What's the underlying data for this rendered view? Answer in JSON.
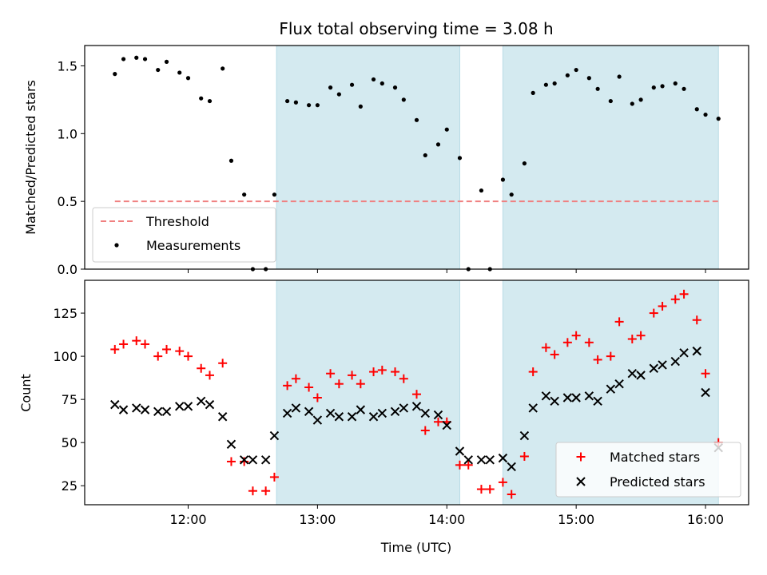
{
  "chart_data": [
    {
      "type": "scatter",
      "title": "Flux total observing time = 3.08 h",
      "xlabel": "",
      "ylabel": "Matched/Predicted stars",
      "xlim": [
        "11:12",
        "16:20"
      ],
      "ylim": [
        0,
        1.65
      ],
      "yticks": [
        "0.0",
        "0.5",
        "1.0",
        "1.5"
      ],
      "shaded_intervals": [
        [
          "12:41",
          "14:06"
        ],
        [
          "14:26",
          "16:06"
        ]
      ],
      "threshold": {
        "name": "Threshold",
        "value": 0.5,
        "x_start": "11:26",
        "x_end": "16:06",
        "color": "#f08080"
      },
      "series": [
        {
          "name": "Measurements",
          "color": "#000000",
          "marker": "dot",
          "x": [
            "11:26",
            "11:30",
            "11:36",
            "11:40",
            "11:46",
            "11:50",
            "11:56",
            "12:00",
            "12:06",
            "12:10",
            "12:16",
            "12:20",
            "12:26",
            "12:30",
            "12:36",
            "12:40",
            "12:46",
            "12:50",
            "12:56",
            "13:00",
            "13:06",
            "13:10",
            "13:16",
            "13:20",
            "13:26",
            "13:30",
            "13:36",
            "13:40",
            "13:46",
            "13:50",
            "13:56",
            "14:00",
            "14:06",
            "14:10",
            "14:16",
            "14:20",
            "14:26",
            "14:30",
            "14:36",
            "14:40",
            "14:46",
            "14:50",
            "14:56",
            "15:00",
            "15:06",
            "15:10",
            "15:16",
            "15:20",
            "15:26",
            "15:30",
            "15:36",
            "15:40",
            "15:46",
            "15:50",
            "15:56",
            "16:00",
            "16:06"
          ],
          "y": [
            1.44,
            1.55,
            1.56,
            1.55,
            1.47,
            1.53,
            1.45,
            1.41,
            1.26,
            1.24,
            1.48,
            0.8,
            0.55,
            0.0,
            0.0,
            0.55,
            1.24,
            1.23,
            1.21,
            1.21,
            1.34,
            1.29,
            1.36,
            1.2,
            1.4,
            1.37,
            1.34,
            1.25,
            1.1,
            0.84,
            0.92,
            1.03,
            0.82,
            0.0,
            0.58,
            0.0,
            0.66,
            0.55,
            0.78,
            1.3,
            1.36,
            1.37,
            1.43,
            1.47,
            1.41,
            1.33,
            1.24,
            1.42,
            1.22,
            1.25,
            1.34,
            1.35,
            1.37,
            1.33,
            1.18,
            1.14,
            1.11
          ]
        }
      ]
    },
    {
      "type": "scatter",
      "title": "",
      "xlabel": "Time (UTC)",
      "ylabel": "Count",
      "xlim": [
        "11:12",
        "16:20"
      ],
      "ylim": [
        14,
        144
      ],
      "yticks": [
        "25",
        "50",
        "75",
        "100",
        "125"
      ],
      "xticks": [
        "12:00",
        "13:00",
        "14:00",
        "15:00",
        "16:00"
      ],
      "shaded_intervals": [
        [
          "12:41",
          "14:06"
        ],
        [
          "14:26",
          "16:06"
        ]
      ],
      "series": [
        {
          "name": "Matched stars",
          "color": "#ff0000",
          "marker": "plus",
          "x": [
            "11:26",
            "11:30",
            "11:36",
            "11:40",
            "11:46",
            "11:50",
            "11:56",
            "12:00",
            "12:06",
            "12:10",
            "12:16",
            "12:20",
            "12:26",
            "12:30",
            "12:36",
            "12:40",
            "12:46",
            "12:50",
            "12:56",
            "13:00",
            "13:06",
            "13:10",
            "13:16",
            "13:20",
            "13:26",
            "13:30",
            "13:36",
            "13:40",
            "13:46",
            "13:50",
            "13:56",
            "14:00",
            "14:06",
            "14:10",
            "14:16",
            "14:20",
            "14:26",
            "14:30",
            "14:36",
            "14:40",
            "14:46",
            "14:50",
            "14:56",
            "15:00",
            "15:06",
            "15:10",
            "15:16",
            "15:20",
            "15:26",
            "15:30",
            "15:36",
            "15:40",
            "15:46",
            "15:50",
            "15:56",
            "16:00",
            "16:06"
          ],
          "y": [
            104,
            107,
            109,
            107,
            100,
            104,
            103,
            100,
            93,
            89,
            96,
            39,
            39,
            22,
            22,
            30,
            83,
            87,
            82,
            76,
            90,
            84,
            89,
            84,
            91,
            92,
            91,
            87,
            78,
            57,
            62,
            62,
            37,
            37,
            23,
            23,
            27,
            20,
            42,
            91,
            105,
            101,
            108,
            112,
            108,
            98,
            100,
            120,
            110,
            112,
            125,
            129,
            133,
            136,
            121,
            90,
            50
          ]
        },
        {
          "name": "Predicted stars",
          "color": "#000000",
          "marker": "x",
          "x": [
            "11:26",
            "11:30",
            "11:36",
            "11:40",
            "11:46",
            "11:50",
            "11:56",
            "12:00",
            "12:06",
            "12:10",
            "12:16",
            "12:20",
            "12:26",
            "12:30",
            "12:36",
            "12:40",
            "12:46",
            "12:50",
            "12:56",
            "13:00",
            "13:06",
            "13:10",
            "13:16",
            "13:20",
            "13:26",
            "13:30",
            "13:36",
            "13:40",
            "13:46",
            "13:50",
            "13:56",
            "14:00",
            "14:06",
            "14:10",
            "14:16",
            "14:20",
            "14:26",
            "14:30",
            "14:36",
            "14:40",
            "14:46",
            "14:50",
            "14:56",
            "15:00",
            "15:06",
            "15:10",
            "15:16",
            "15:20",
            "15:26",
            "15:30",
            "15:36",
            "15:40",
            "15:46",
            "15:50",
            "15:56",
            "16:00",
            "16:06"
          ],
          "y": [
            72,
            69,
            70,
            69,
            68,
            68,
            71,
            71,
            74,
            72,
            65,
            49,
            40,
            40,
            40,
            54,
            67,
            70,
            68,
            63,
            67,
            65,
            65,
            69,
            65,
            67,
            68,
            70,
            71,
            67,
            66,
            60,
            45,
            40,
            40,
            40,
            41,
            36,
            54,
            70,
            77,
            74,
            76,
            76,
            77,
            74,
            81,
            84,
            90,
            89,
            93,
            95,
            97,
            102,
            103,
            79,
            47
          ]
        }
      ]
    }
  ]
}
